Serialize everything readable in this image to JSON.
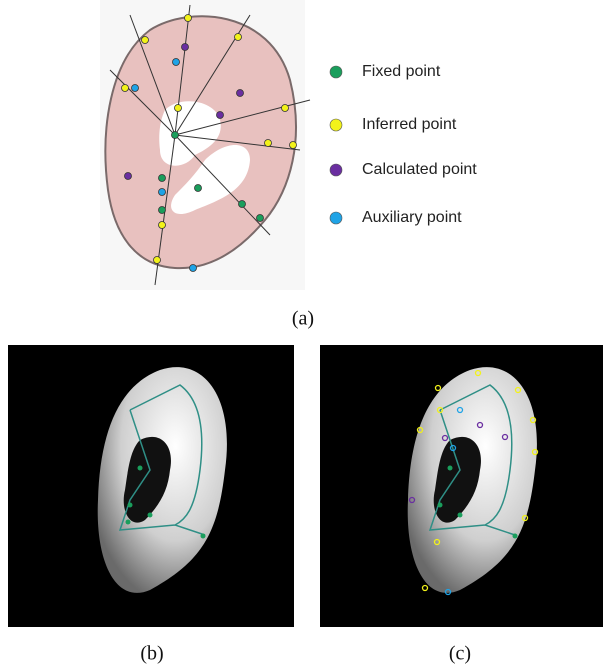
{
  "legend": [
    {
      "label": "Fixed point",
      "color": "#1a9e5c"
    },
    {
      "label": "Inferred point",
      "color": "#f2f21a"
    },
    {
      "label": "Calculated point",
      "color": "#6a2ea0"
    },
    {
      "label": "Auxiliary point",
      "color": "#1fa3e6"
    }
  ],
  "panels": [
    {
      "caption": "(a)"
    },
    {
      "caption": "(b)"
    },
    {
      "caption": "(c)"
    }
  ]
}
